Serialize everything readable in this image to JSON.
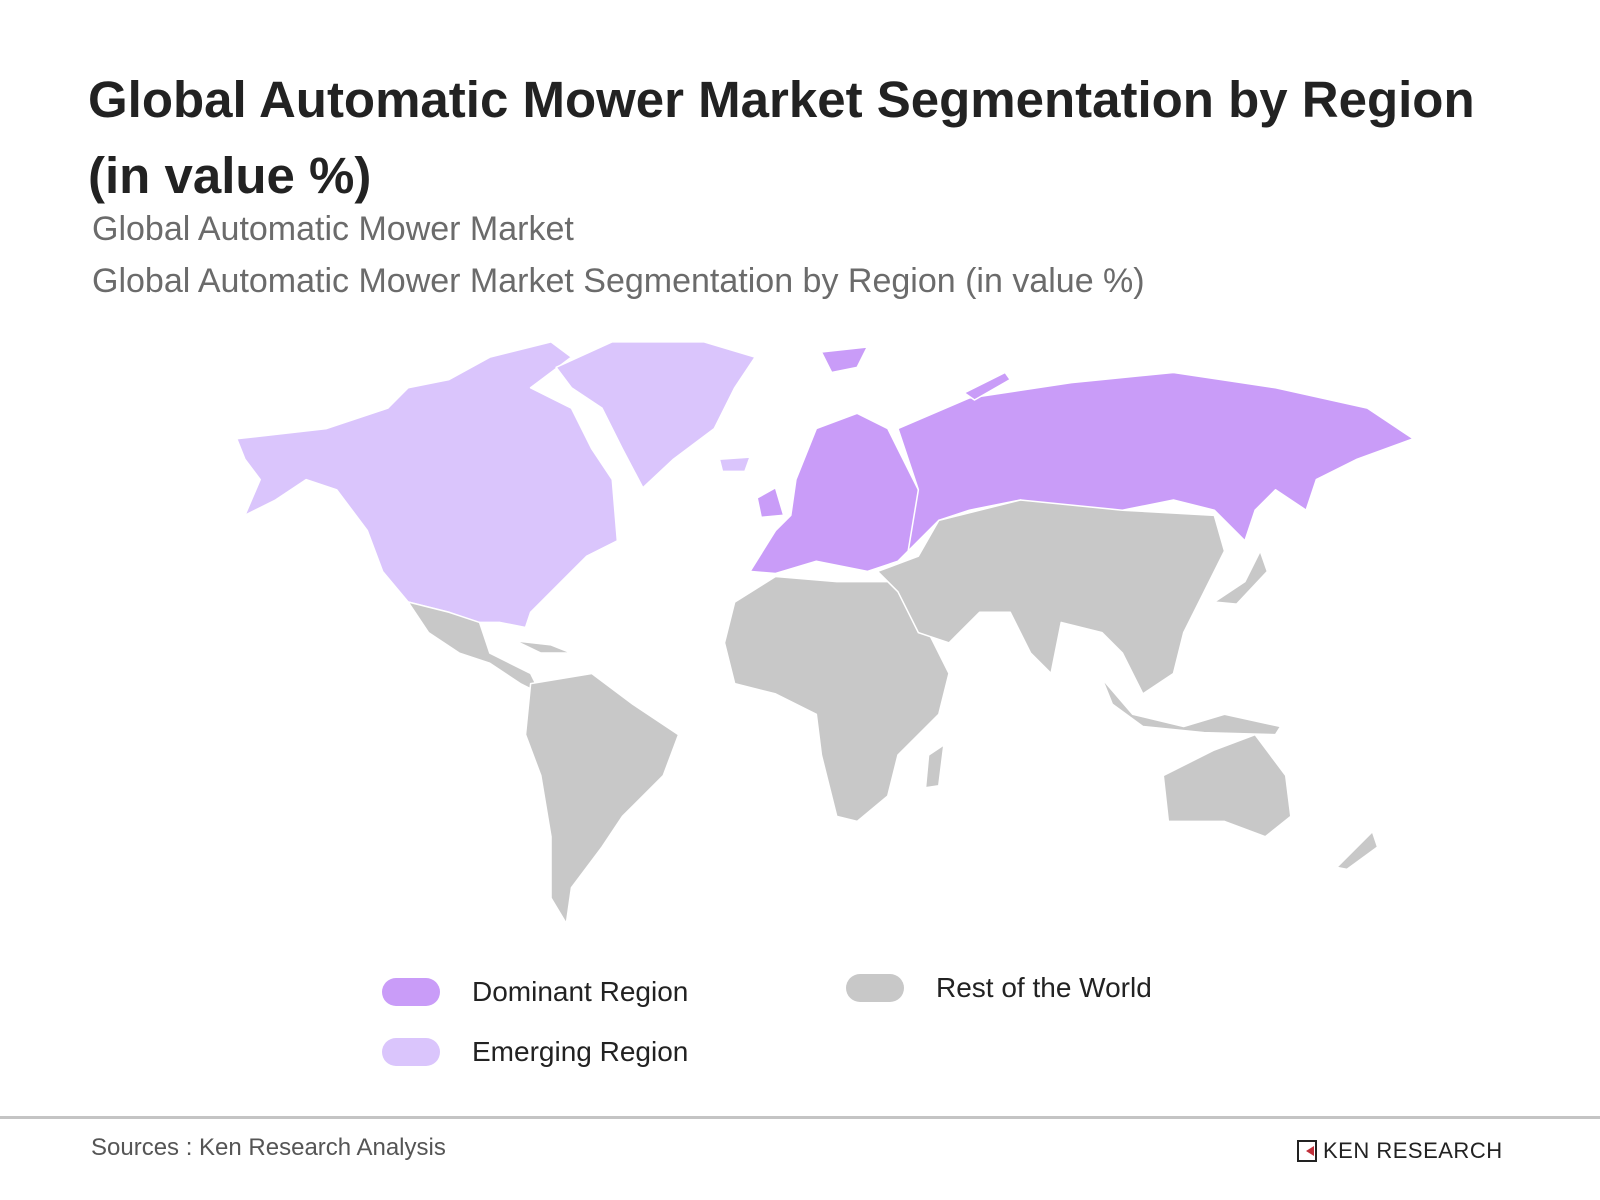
{
  "header": {
    "title": "Global Automatic Mower Market Segmentation by Region (in value %)",
    "subtitle_1": "Global Automatic Mower Market",
    "subtitle_2": "Global Automatic Mower Market Segmentation by Region (in value %)"
  },
  "colors": {
    "dominant": "#c99cf8",
    "emerging": "#dac5fc",
    "rest": "#c8c8c8"
  },
  "map_regions": {
    "dominant": [
      "Europe",
      "Russia"
    ],
    "emerging": [
      "North America",
      "Greenland",
      "Iceland"
    ],
    "rest": [
      "Latin America",
      "Africa",
      "Middle East",
      "Asia",
      "Oceania"
    ]
  },
  "legend": [
    {
      "label": "Dominant Region",
      "color": "#c99cf8"
    },
    {
      "label": "Emerging Region",
      "color": "#dac5fc"
    },
    {
      "label": "Rest of the World",
      "color": "#c8c8c8"
    }
  ],
  "footer": {
    "source": "Sources : Ken Research Analysis",
    "logo_text": "KEN RESEARCH"
  }
}
